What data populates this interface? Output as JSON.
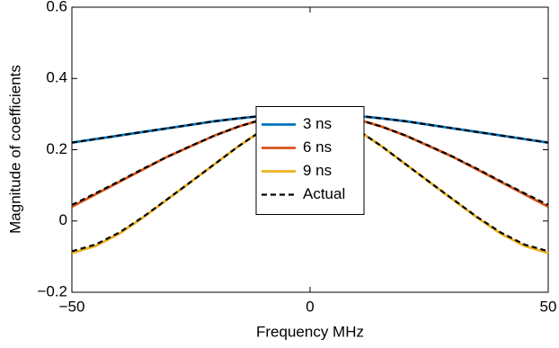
{
  "chart_data": {
    "type": "line",
    "x_label": "Frequency MHz",
    "y_label": "Magnitude of coefficients",
    "x": [
      -50,
      -45,
      -40,
      -35,
      -30,
      -25,
      -20,
      -15,
      -10,
      -5,
      0,
      5,
      10,
      15,
      20,
      25,
      30,
      35,
      40,
      45,
      50
    ],
    "xlim": [
      -50,
      50
    ],
    "xticks": [
      {
        "value": -50,
        "label": "−50"
      },
      0,
      50
    ],
    "ylim": [
      -0.2,
      0.6
    ],
    "yticks": [
      {
        "value": -0.2,
        "label": "−0.2"
      },
      0,
      0.2,
      0.4,
      0.6
    ],
    "legend": "center",
    "series": [
      {
        "name": "3 ns",
        "color": "#0072bd",
        "values": [
          0.22,
          0.23,
          0.24,
          0.25,
          0.26,
          0.27,
          0.28,
          0.288,
          0.295,
          0.299,
          0.3,
          0.299,
          0.295,
          0.288,
          0.28,
          0.27,
          0.26,
          0.25,
          0.24,
          0.23,
          0.22
        ]
      },
      {
        "name": "6 ns",
        "color": "#d95319",
        "values": [
          0.04,
          0.075,
          0.11,
          0.145,
          0.18,
          0.21,
          0.24,
          0.265,
          0.285,
          0.297,
          0.3,
          0.297,
          0.285,
          0.265,
          0.24,
          0.21,
          0.18,
          0.145,
          0.11,
          0.075,
          0.04
        ]
      },
      {
        "name": "9 ns",
        "color": "#edb120",
        "values": [
          -0.09,
          -0.07,
          -0.035,
          0.01,
          0.06,
          0.11,
          0.16,
          0.21,
          0.255,
          0.29,
          0.3,
          0.29,
          0.255,
          0.21,
          0.16,
          0.11,
          0.06,
          0.01,
          -0.035,
          -0.07,
          -0.09
        ]
      },
      {
        "name": "Actual",
        "color": "#000000",
        "dashed": true,
        "values": [
          0.22,
          0.23,
          0.24,
          0.25,
          0.26,
          0.27,
          0.28,
          0.288,
          0.295,
          0.299,
          0.3,
          0.299,
          0.295,
          0.288,
          0.28,
          0.27,
          0.26,
          0.25,
          0.24,
          0.23,
          0.22
        ]
      },
      {
        "color": "#000000",
        "dashed": true,
        "values": [
          0.045,
          0.078,
          0.112,
          0.147,
          0.18,
          0.211,
          0.24,
          0.265,
          0.285,
          0.297,
          0.3,
          0.297,
          0.285,
          0.265,
          0.24,
          0.211,
          0.18,
          0.147,
          0.112,
          0.078,
          0.045
        ]
      },
      {
        "color": "#000000",
        "dashed": true,
        "values": [
          -0.085,
          -0.066,
          -0.032,
          0.012,
          0.061,
          0.11,
          0.16,
          0.21,
          0.255,
          0.29,
          0.3,
          0.29,
          0.255,
          0.21,
          0.16,
          0.11,
          0.061,
          0.012,
          -0.032,
          -0.066,
          -0.085
        ]
      }
    ]
  }
}
